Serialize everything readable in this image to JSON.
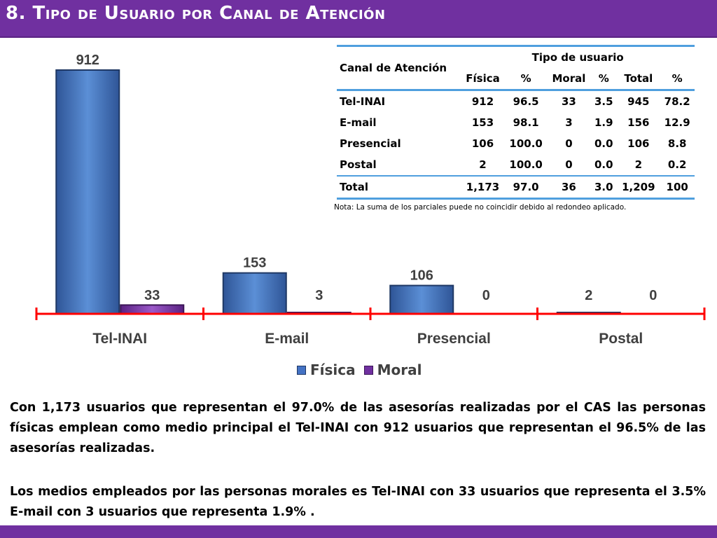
{
  "header": {
    "title": "8. Tipo de Usuario por Canal de Atención"
  },
  "chart_data": {
    "type": "bar",
    "categories": [
      "Tel-INAI",
      "E-mail",
      "Presencial",
      "Postal"
    ],
    "series": [
      {
        "name": "Física",
        "values": [
          912,
          153,
          106,
          2
        ],
        "color": "#4472c4"
      },
      {
        "name": "Moral",
        "values": [
          33,
          3,
          0,
          0
        ],
        "color": "#7030a0"
      }
    ],
    "data_labels": [
      [
        "912",
        "33"
      ],
      [
        "153",
        "3"
      ],
      [
        "106",
        "0"
      ],
      [
        "2",
        "0"
      ]
    ],
    "ylim": [
      0,
      912
    ],
    "axis_color": "#ff0000",
    "legend_position": "bottom",
    "grid": false
  },
  "table": {
    "header_col1": "Canal de Atención",
    "header_group": "Tipo de usuario",
    "subheaders": [
      "Física",
      "%",
      "Moral",
      "%",
      "Total",
      "%"
    ],
    "rows": [
      {
        "label": "Tel-INAI",
        "values": [
          "912",
          "96.5",
          "33",
          "3.5",
          "945",
          "78.2"
        ]
      },
      {
        "label": "E-mail",
        "values": [
          "153",
          "98.1",
          "3",
          "1.9",
          "156",
          "12.9"
        ]
      },
      {
        "label": "Presencial",
        "values": [
          "106",
          "100.0",
          "0",
          "0.0",
          "106",
          "8.8"
        ]
      },
      {
        "label": "Postal",
        "values": [
          "2",
          "100.0",
          "0",
          "0.0",
          "2",
          "0.2"
        ]
      }
    ],
    "total": {
      "label": "Total",
      "values": [
        "1,173",
        "97.0",
        "36",
        "3.0",
        "1,209",
        "100"
      ]
    },
    "note": "Nota: La suma de los parciales puede no coincidir debido al redondeo aplicado."
  },
  "paragraphs": [
    "Con 1,173 usuarios que representan el 97.0% de las asesorías realizadas por el CAS las personas físicas emplean como medio principal el Tel-INAI con 912 usuarios que representan el 96.5% de las asesorías realizadas.",
    "Los medios empleados por las personas morales es Tel-INAI con 33 usuarios que representa el 3.5%  E-mail con 3 usuarios que representa 1.9% ."
  ]
}
